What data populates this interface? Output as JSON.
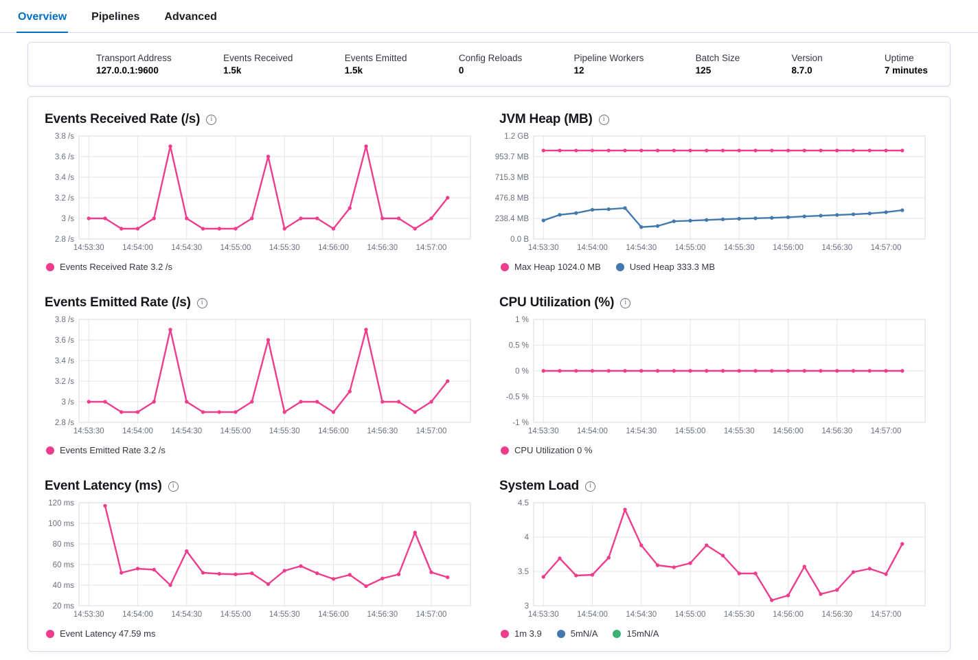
{
  "tabs": [
    {
      "label": "Overview",
      "active": true
    },
    {
      "label": "Pipelines",
      "active": false
    },
    {
      "label": "Advanced",
      "active": false
    }
  ],
  "stats": [
    {
      "label": "Transport Address",
      "value": "127.0.0.1:9600"
    },
    {
      "label": "Events Received",
      "value": "1.5k"
    },
    {
      "label": "Events Emitted",
      "value": "1.5k"
    },
    {
      "label": "Config Reloads",
      "value": "0"
    },
    {
      "label": "Pipeline Workers",
      "value": "12"
    },
    {
      "label": "Batch Size",
      "value": "125"
    },
    {
      "label": "Version",
      "value": "8.7.0"
    },
    {
      "label": "Uptime",
      "value": "7 minutes"
    }
  ],
  "icons": {
    "info": "i"
  },
  "colors": {
    "pink": "#ee3d8c",
    "blue": "#4379ad",
    "green": "#3bb273",
    "tab_active": "#0071c2",
    "grid": "#e4e6ec",
    "axis_text": "#69707d"
  },
  "chart_data": [
    {
      "type": "line",
      "title": "Events Received Rate (/s)",
      "x_start_time": "14:53:30",
      "x_point_interval_s": 10,
      "x_tick_labels": [
        "14:53:30",
        "14:54:00",
        "14:54:30",
        "14:55:00",
        "14:55:30",
        "14:56:00",
        "14:56:30",
        "14:57:00"
      ],
      "ylim": [
        2.8,
        3.8
      ],
      "yticks": [
        {
          "v": 3.8,
          "label": "3.8 /s"
        },
        {
          "v": 3.6,
          "label": "3.6 /s"
        },
        {
          "v": 3.4,
          "label": "3.4 /s"
        },
        {
          "v": 3.2,
          "label": "3.2 /s"
        },
        {
          "v": 3.0,
          "label": "3 /s"
        },
        {
          "v": 2.8,
          "label": "2.8 /s"
        }
      ],
      "series": [
        {
          "name": "Events Received Rate",
          "color": "#ee3d8c",
          "t_start": 0,
          "values": [
            3,
            3,
            2.9,
            2.9,
            3,
            3.7,
            3,
            2.9,
            2.9,
            2.9,
            3,
            3.6,
            2.9,
            3,
            3,
            2.9,
            3.1,
            3.7,
            3,
            3,
            2.9,
            3,
            3.2
          ]
        }
      ],
      "legend": [
        {
          "text": "Events Received Rate 3.2 /s",
          "color": "#ee3d8c"
        }
      ]
    },
    {
      "type": "line",
      "title": "JVM Heap (MB)",
      "x_start_time": "14:53:30",
      "x_point_interval_s": 10,
      "x_tick_labels": [
        "14:53:30",
        "14:54:00",
        "14:54:30",
        "14:55:00",
        "14:55:30",
        "14:56:00",
        "14:56:30",
        "14:57:00"
      ],
      "ylim": [
        0,
        1192.1
      ],
      "yticks": [
        {
          "v": 1192.1,
          "label": "1.2 GB"
        },
        {
          "v": 953.7,
          "label": "953.7 MB"
        },
        {
          "v": 715.3,
          "label": "715.3 MB"
        },
        {
          "v": 476.8,
          "label": "476.8 MB"
        },
        {
          "v": 238.4,
          "label": "238.4 MB"
        },
        {
          "v": 0,
          "label": "0.0 B"
        }
      ],
      "series": [
        {
          "name": "Max Heap",
          "color": "#ee3d8c",
          "t_start": 0,
          "values": [
            1024,
            1024,
            1024,
            1024,
            1024,
            1024,
            1024,
            1024,
            1024,
            1024,
            1024,
            1024,
            1024,
            1024,
            1024,
            1024,
            1024,
            1024,
            1024,
            1024,
            1024,
            1024,
            1024
          ]
        },
        {
          "name": "Used Heap",
          "color": "#4379ad",
          "t_start": 0,
          "values": [
            215,
            280,
            300,
            338,
            345,
            358,
            138,
            150,
            205,
            212,
            220,
            228,
            235,
            240,
            245,
            252,
            262,
            270,
            278,
            286,
            295,
            310,
            333
          ]
        }
      ],
      "legend": [
        {
          "text": "Max Heap 1024.0 MB",
          "color": "#ee3d8c"
        },
        {
          "text": "Used Heap 333.3 MB",
          "color": "#4379ad"
        }
      ]
    },
    {
      "type": "line",
      "title": "Events Emitted Rate (/s)",
      "x_start_time": "14:53:30",
      "x_point_interval_s": 10,
      "x_tick_labels": [
        "14:53:30",
        "14:54:00",
        "14:54:30",
        "14:55:00",
        "14:55:30",
        "14:56:00",
        "14:56:30",
        "14:57:00"
      ],
      "ylim": [
        2.8,
        3.8
      ],
      "yticks": [
        {
          "v": 3.8,
          "label": "3.8 /s"
        },
        {
          "v": 3.6,
          "label": "3.6 /s"
        },
        {
          "v": 3.4,
          "label": "3.4 /s"
        },
        {
          "v": 3.2,
          "label": "3.2 /s"
        },
        {
          "v": 3.0,
          "label": "3 /s"
        },
        {
          "v": 2.8,
          "label": "2.8 /s"
        }
      ],
      "series": [
        {
          "name": "Events Emitted Rate",
          "color": "#ee3d8c",
          "t_start": 0,
          "values": [
            3,
            3,
            2.9,
            2.9,
            3,
            3.7,
            3,
            2.9,
            2.9,
            2.9,
            3,
            3.6,
            2.9,
            3,
            3,
            2.9,
            3.1,
            3.7,
            3,
            3,
            2.9,
            3,
            3.2
          ]
        }
      ],
      "legend": [
        {
          "text": "Events Emitted Rate 3.2 /s",
          "color": "#ee3d8c"
        }
      ]
    },
    {
      "type": "line",
      "title": "CPU Utilization (%)",
      "x_start_time": "14:53:30",
      "x_point_interval_s": 10,
      "x_tick_labels": [
        "14:53:30",
        "14:54:00",
        "14:54:30",
        "14:55:00",
        "14:55:30",
        "14:56:00",
        "14:56:30",
        "14:57:00"
      ],
      "ylim": [
        -1,
        1
      ],
      "yticks": [
        {
          "v": 1,
          "label": "1 %"
        },
        {
          "v": 0.5,
          "label": "0.5 %"
        },
        {
          "v": 0,
          "label": "0 %"
        },
        {
          "v": -0.5,
          "label": "-0.5 %"
        },
        {
          "v": -1,
          "label": "-1 %"
        }
      ],
      "series": [
        {
          "name": "CPU Utilization",
          "color": "#ee3d8c",
          "t_start": 0,
          "values": [
            0,
            0,
            0,
            0,
            0,
            0,
            0,
            0,
            0,
            0,
            0,
            0,
            0,
            0,
            0,
            0,
            0,
            0,
            0,
            0,
            0,
            0,
            0
          ]
        }
      ],
      "legend": [
        {
          "text": "CPU Utilization 0 %",
          "color": "#ee3d8c"
        }
      ]
    },
    {
      "type": "line",
      "title": "Event Latency (ms)",
      "x_start_time": "14:53:30",
      "x_point_interval_s": 10,
      "x_tick_labels": [
        "14:53:30",
        "14:54:00",
        "14:54:30",
        "14:55:00",
        "14:55:30",
        "14:56:00",
        "14:56:30",
        "14:57:00"
      ],
      "ylim": [
        20,
        120
      ],
      "yticks": [
        {
          "v": 120,
          "label": "120 ms"
        },
        {
          "v": 100,
          "label": "100 ms"
        },
        {
          "v": 80,
          "label": "80 ms"
        },
        {
          "v": 60,
          "label": "60 ms"
        },
        {
          "v": 40,
          "label": "40 ms"
        },
        {
          "v": 20,
          "label": "20 ms"
        }
      ],
      "series": [
        {
          "name": "Event Latency",
          "color": "#ee3d8c",
          "t_start": 10,
          "values": [
            117,
            52,
            56,
            55,
            40,
            73,
            52,
            51,
            50.5,
            51.5,
            41,
            54,
            58.5,
            51.5,
            46,
            50,
            39,
            46.5,
            50.5,
            91,
            52.5,
            47.59
          ]
        }
      ],
      "legend": [
        {
          "text": "Event Latency 47.59 ms",
          "color": "#ee3d8c"
        }
      ]
    },
    {
      "type": "line",
      "title": "System Load",
      "x_start_time": "14:53:30",
      "x_point_interval_s": 10,
      "x_tick_labels": [
        "14:53:30",
        "14:54:00",
        "14:54:30",
        "14:55:00",
        "14:55:30",
        "14:56:00",
        "14:56:30",
        "14:57:00"
      ],
      "ylim": [
        3,
        4.5
      ],
      "yticks": [
        {
          "v": 4.5,
          "label": "4.5"
        },
        {
          "v": 4,
          "label": "4"
        },
        {
          "v": 3.5,
          "label": "3.5"
        },
        {
          "v": 3,
          "label": "3"
        }
      ],
      "series": [
        {
          "name": "1m",
          "color": "#ee3d8c",
          "t_start": 0,
          "values": [
            3.42,
            3.69,
            3.44,
            3.45,
            3.7,
            4.4,
            3.88,
            3.59,
            3.56,
            3.62,
            3.88,
            3.73,
            3.47,
            3.47,
            3.08,
            3.15,
            3.57,
            3.17,
            3.23,
            3.49,
            3.54,
            3.46,
            3.9
          ]
        }
      ],
      "legend": [
        {
          "text": "1m 3.9",
          "color": "#ee3d8c"
        },
        {
          "text": "5mN/A",
          "color": "#4379ad"
        },
        {
          "text": "15mN/A",
          "color": "#3bb273"
        }
      ]
    }
  ]
}
